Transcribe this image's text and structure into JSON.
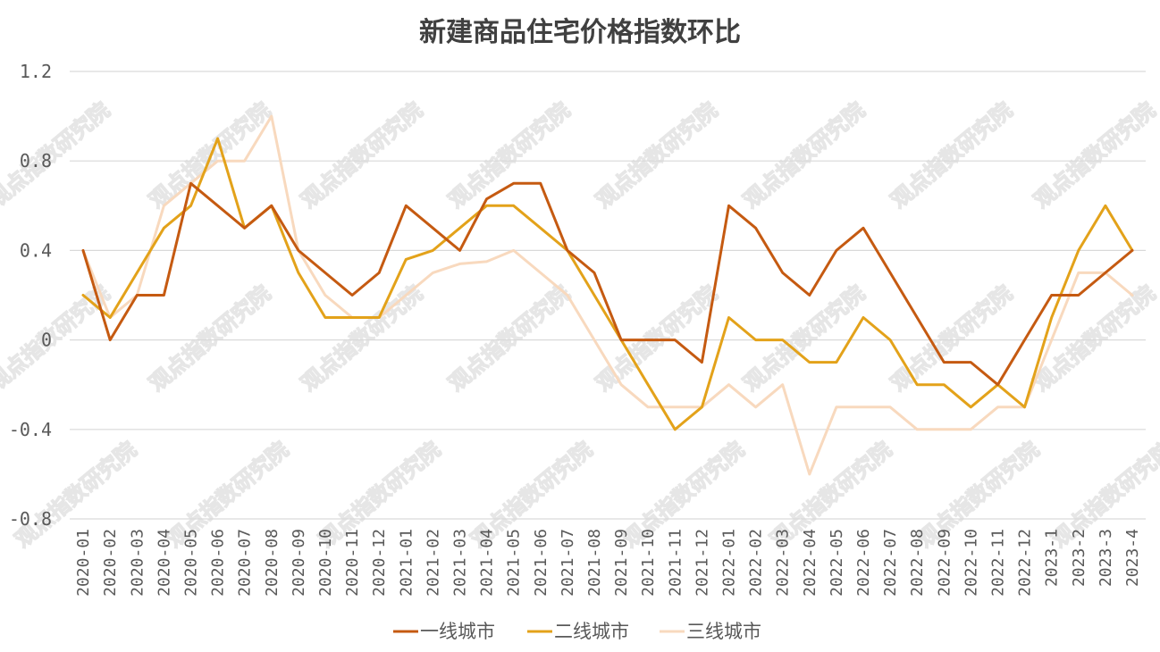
{
  "chart_data": {
    "type": "line",
    "title": "新建商品住宅价格指数环比",
    "xlabel": "",
    "ylabel": "",
    "ylim": [
      -0.8,
      1.2
    ],
    "yticks": [
      "1.2",
      "0.8",
      "0.4",
      "0",
      "-0.4",
      "-0.8"
    ],
    "ytick_values": [
      1.2,
      0.8,
      0.4,
      0,
      -0.4,
      -0.8
    ],
    "grid": true,
    "legend_position": "bottom",
    "watermark": "观点指数研究院",
    "categories": [
      "2020-01",
      "2020-02",
      "2020-03",
      "2020-04",
      "2020-05",
      "2020-06",
      "2020-07",
      "2020-08",
      "2020-09",
      "2020-10",
      "2020-11",
      "2020-12",
      "2021-01",
      "2021-02",
      "2021-03",
      "2021-04",
      "2021-05",
      "2021-06",
      "2021-07",
      "2021-08",
      "2021-09",
      "2021-10",
      "2021-11",
      "2021-12",
      "2022-01",
      "2022-02",
      "2022-03",
      "2022-04",
      "2022-05",
      "2022-06",
      "2022-07",
      "2022-08",
      "2022-09",
      "2022-10",
      "2022-11",
      "2022-12",
      "2023-1",
      "2023-2",
      "2023-3",
      "2023-4"
    ],
    "series": [
      {
        "name": "一线城市",
        "color": "#C55A11",
        "values": [
          0.4,
          0.0,
          0.2,
          0.2,
          0.7,
          0.6,
          0.5,
          0.6,
          0.4,
          0.3,
          0.2,
          0.3,
          0.6,
          0.5,
          0.4,
          0.63,
          0.7,
          0.7,
          0.4,
          0.3,
          0.0,
          0.0,
          0.0,
          -0.1,
          0.6,
          0.5,
          0.3,
          0.2,
          0.4,
          0.5,
          0.3,
          0.1,
          -0.1,
          -0.1,
          -0.2,
          0.0,
          0.2,
          0.2,
          0.3,
          0.4
        ]
      },
      {
        "name": "二线城市",
        "color": "#E3A21A",
        "values": [
          0.2,
          0.1,
          0.3,
          0.5,
          0.6,
          0.9,
          0.5,
          0.6,
          0.3,
          0.1,
          0.1,
          0.1,
          0.36,
          0.4,
          0.5,
          0.6,
          0.6,
          0.5,
          0.4,
          0.2,
          0.0,
          -0.2,
          -0.4,
          -0.3,
          0.1,
          0.0,
          0.0,
          -0.1,
          -0.1,
          0.1,
          0.0,
          -0.2,
          -0.2,
          -0.3,
          -0.2,
          -0.3,
          0.1,
          0.4,
          0.6,
          0.4
        ]
      },
      {
        "name": "三线城市",
        "color": "#F8D9BE",
        "values": [
          0.4,
          0.1,
          0.2,
          0.6,
          0.7,
          0.8,
          0.8,
          1.0,
          0.4,
          0.2,
          0.1,
          0.1,
          0.2,
          0.3,
          0.34,
          0.35,
          0.4,
          0.3,
          0.2,
          0.0,
          -0.2,
          -0.3,
          -0.3,
          -0.3,
          -0.2,
          -0.3,
          -0.2,
          -0.6,
          -0.3,
          -0.3,
          -0.3,
          -0.4,
          -0.4,
          -0.4,
          -0.3,
          -0.3,
          0.0,
          0.3,
          0.3,
          0.2
        ]
      }
    ]
  }
}
